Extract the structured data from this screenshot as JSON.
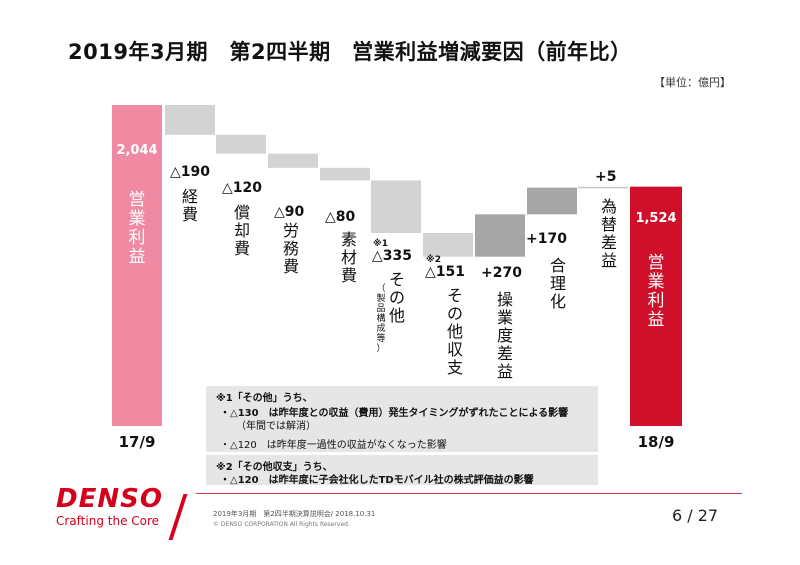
{
  "title": "2019年3月期　第2四半期　営業利益増減要因（前年比）",
  "unit": "【単位：億円】",
  "chart_data": {
    "type": "bar",
    "subtype": "waterfall",
    "start": {
      "label": "17/9",
      "name": "営業利益",
      "value": 2044,
      "value_label": "2,044",
      "color": "#f08aa3"
    },
    "end": {
      "label": "18/9",
      "name": "営業利益",
      "value": 1524,
      "value_label": "1,524",
      "color": "#d0102a"
    },
    "steps": [
      {
        "name": "経費",
        "delta": -190,
        "label": "△190",
        "note": ""
      },
      {
        "name": "償却費",
        "delta": -120,
        "label": "△120",
        "note": ""
      },
      {
        "name": "労務費",
        "delta": -90,
        "label": "△90",
        "note": ""
      },
      {
        "name": "素材費",
        "delta": -80,
        "label": "△80",
        "note": ""
      },
      {
        "name": "その他",
        "sub": "（製品構成等）",
        "delta": -335,
        "label": "△335",
        "note": "※1"
      },
      {
        "name": "その他収支",
        "delta": -151,
        "label": "△151",
        "note": "※2"
      },
      {
        "name": "操業度差益",
        "delta": 270,
        "label": "+270",
        "note": ""
      },
      {
        "name": "合理化",
        "delta": 170,
        "label": "+170",
        "note": ""
      },
      {
        "name": "為替差益",
        "delta": 5,
        "label": "+5",
        "note": ""
      }
    ],
    "colors": {
      "negative": "#d3d3d3",
      "positive_large": "#a6a6a6",
      "positive_small": "#c8c8c8"
    }
  },
  "notes": {
    "n1_head": "※1「その他」うち、",
    "n1_line1": "・△130　は昨年度との収益（費用）発生タイミングがずれたことによる影響",
    "n1_line1b": "（年間では解消）",
    "n1_line2": "・△120　は昨年度一過性の収益がなくなった影響",
    "n2_head": "※2「その他収支」うち、",
    "n2_line1": "・△120　は昨年度に子会社化したTDモバイル社の株式評価益の影響"
  },
  "footer": {
    "logo": "DENSO",
    "tagline": "Crafting the Core",
    "line1": "2019年3月期　第2四半期決算説明会/ 2018.10.31",
    "line2": "© DENSO CORPORATION All Rights Reserved.",
    "page": "6 / 27"
  }
}
